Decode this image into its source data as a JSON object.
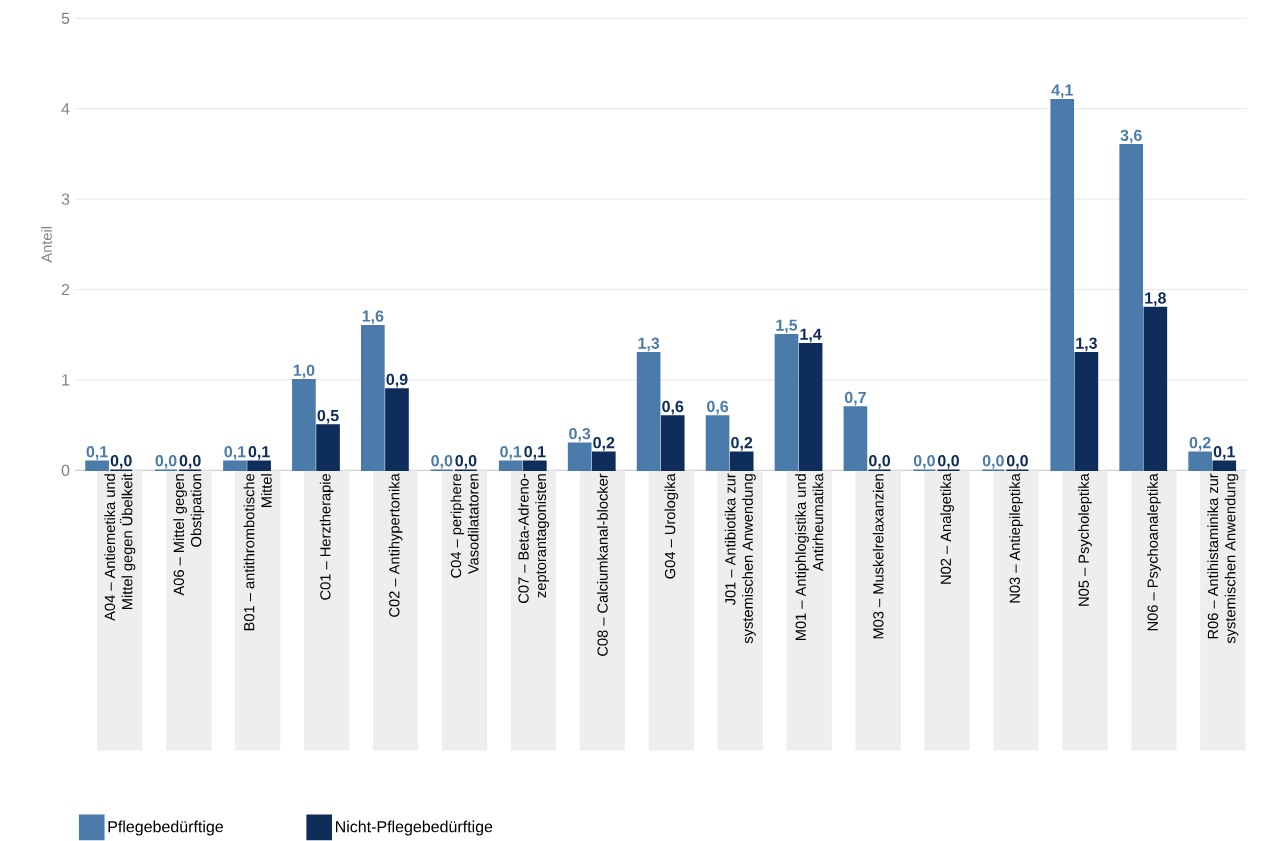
{
  "chart_data": {
    "type": "bar",
    "ylabel": "Anteil",
    "categories": [
      "A04 – Antiemetika und Mittel gegen Übelkeit",
      "A06 – Mittel gegen Obstipation",
      "B01 – antithrombotische Mittel",
      "C01 – Herztherapie",
      "C02 – Antihypertonika",
      "C04 – periphere Vasodilatatoren",
      "C07 – Beta-Adreno-zeptorantagonisten",
      "C08 – Calciumkanal-blocker",
      "G04 – Urologika",
      "J01 – Antibiotika zur systemischen Anwendung",
      "M01 – Antiphlogistika und Antirheumatika",
      "M03 – Muskelrelaxanzien",
      "N02 – Analgetika",
      "N03 – Antiepileptika",
      "N05 – Psycholeptika",
      "N06 – Psychoanaleptika",
      "R06 – Antihistaminika zur systemischen Anwendung"
    ],
    "series": [
      {
        "name": "Pflegebedürftige",
        "color": "#4a7bab",
        "values": [
          0.1,
          0.0,
          0.1,
          1.0,
          1.6,
          0.0,
          0.1,
          0.3,
          1.3,
          0.6,
          1.5,
          0.7,
          0.0,
          0.0,
          4.1,
          3.6,
          0.2
        ],
        "value_labels": [
          "0,1",
          "0,0",
          "0,1",
          "1,0",
          "1,6",
          "0,0",
          "0,1",
          "0,3",
          "1,3",
          "0,6",
          "1,5",
          "0,7",
          "0,0",
          "0,0",
          "4,1",
          "3,6",
          "0,2"
        ]
      },
      {
        "name": "Nicht-Pflegebedürftige",
        "color": "#0e2d5a",
        "values": [
          0.0,
          0.0,
          0.1,
          0.5,
          0.9,
          0.0,
          0.1,
          0.2,
          0.6,
          0.2,
          1.4,
          0.0,
          0.0,
          0.0,
          1.3,
          1.8,
          0.1
        ],
        "value_labels": [
          "0,0",
          "0,0",
          "0,1",
          "0,5",
          "0,9",
          "0,0",
          "0,1",
          "0,2",
          "0,6",
          "0,2",
          "1,4",
          "0,0",
          "0,0",
          "0,0",
          "1,3",
          "1,8",
          "0,1"
        ]
      }
    ],
    "ylim": [
      0,
      5
    ],
    "yticks": [
      0,
      1,
      2,
      3,
      4,
      5
    ],
    "grid": "y",
    "legend": "bottom"
  }
}
